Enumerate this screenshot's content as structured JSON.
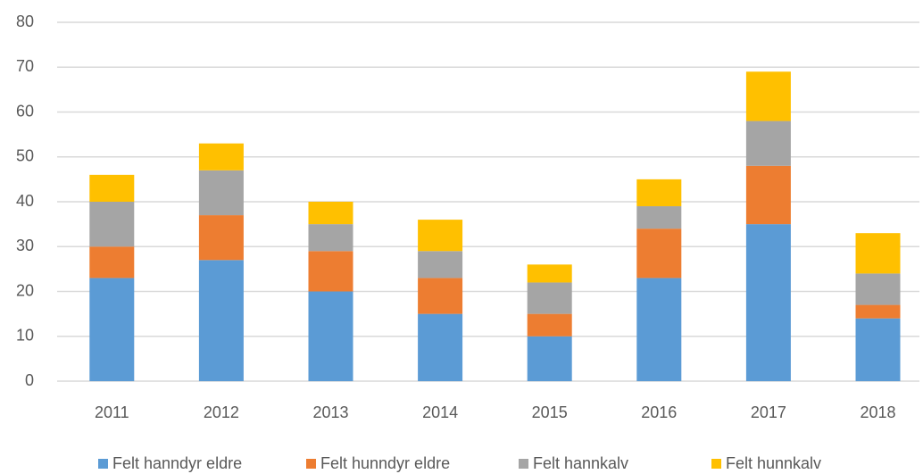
{
  "chart_data": {
    "type": "stacked_bar",
    "categories": [
      "2011",
      "2012",
      "2013",
      "2014",
      "2015",
      "2016",
      "2017",
      "2018"
    ],
    "series": [
      {
        "name": "Felt hanndyr eldre",
        "color": "#5b9bd5",
        "values": [
          23,
          27,
          20,
          15,
          10,
          23,
          35,
          14
        ]
      },
      {
        "name": "Felt hunndyr eldre",
        "color": "#ed7d31",
        "values": [
          7,
          10,
          9,
          8,
          5,
          11,
          13,
          3
        ]
      },
      {
        "name": "Felt hannkalv",
        "color": "#a5a5a5",
        "values": [
          10,
          10,
          6,
          6,
          7,
          5,
          10,
          7
        ]
      },
      {
        "name": "Felt hunnkalv",
        "color": "#ffc000",
        "values": [
          6,
          6,
          5,
          7,
          4,
          6,
          11,
          9
        ]
      }
    ],
    "ylim": [
      0,
      80
    ],
    "yticks": [
      0,
      10,
      20,
      30,
      40,
      50,
      60,
      70,
      80
    ],
    "grid": true,
    "legend": "bottom"
  }
}
